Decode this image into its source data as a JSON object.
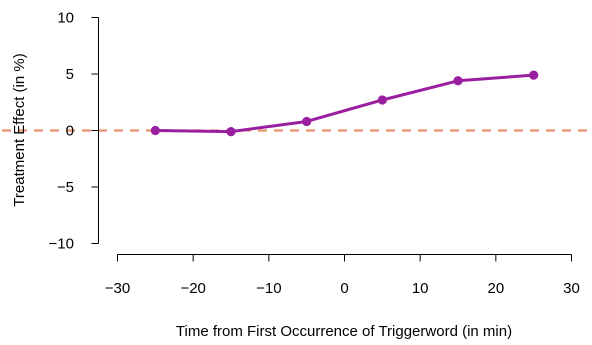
{
  "chart_data": {
    "type": "line",
    "title": "",
    "xlabel": "Time from First Occurrence of Triggerword (in min)",
    "ylabel": "Treatment Effect (in %)",
    "xlim": [
      -30,
      30
    ],
    "ylim": [
      -10,
      10
    ],
    "xticks": [
      -30,
      -20,
      -10,
      0,
      10,
      20,
      30
    ],
    "xtick_labels": [
      "−30",
      "−20",
      "−10",
      "0",
      "10",
      "20",
      "30"
    ],
    "yticks": [
      -10,
      -5,
      0,
      5,
      10
    ],
    "ytick_labels": [
      "−10",
      "−5",
      "0",
      "5",
      "10"
    ],
    "grid": false,
    "series": [
      {
        "x": [
          -25,
          -15,
          -5,
          5,
          15,
          25
        ],
        "y": [
          0.0,
          -0.1,
          0.8,
          2.7,
          4.4,
          4.9
        ],
        "color": "#9a1fa0"
      }
    ],
    "reference_line": {
      "y": 0,
      "style": "dashed",
      "color": "#e8926a"
    }
  }
}
